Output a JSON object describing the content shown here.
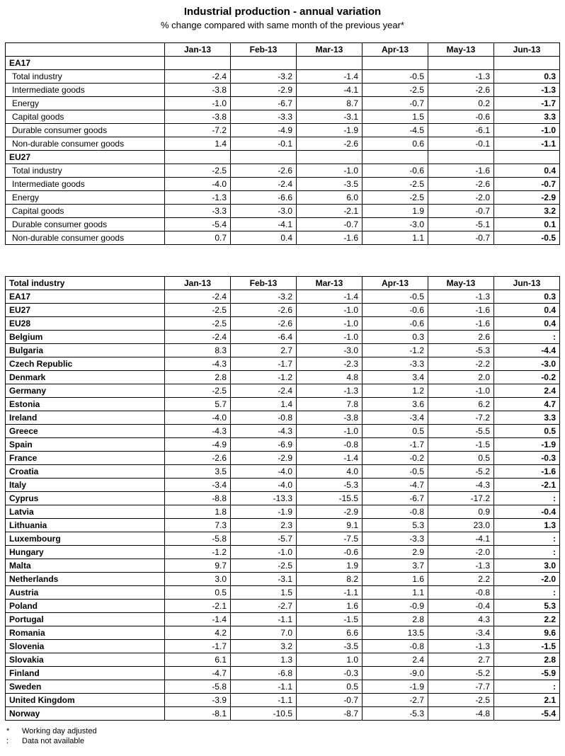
{
  "page": {
    "title": "Industrial production - annual variation",
    "subtitle": "% change compared with same month of the previous year*"
  },
  "tables": {
    "breakdown": {
      "corner_label": "",
      "columns": [
        "Jan-13",
        "Feb-13",
        "Mar-13",
        "Apr-13",
        "May-13",
        "Jun-13"
      ],
      "rows": [
        {
          "label": "EA17",
          "style": "group",
          "values": [
            "",
            "",
            "",
            "",
            "",
            ""
          ]
        },
        {
          "label": "Total industry",
          "style": "item",
          "values": [
            "-2.4",
            "-3.2",
            "-1.4",
            "-0.5",
            "-1.3",
            "0.3"
          ]
        },
        {
          "label": "Intermediate goods",
          "style": "item",
          "values": [
            "-3.8",
            "-2.9",
            "-4.1",
            "-2.5",
            "-2.6",
            "-1.3"
          ]
        },
        {
          "label": "Energy",
          "style": "item",
          "values": [
            "-1.0",
            "-6.7",
            "8.7",
            "-0.7",
            "0.2",
            "-1.7"
          ]
        },
        {
          "label": "Capital goods",
          "style": "item",
          "values": [
            "-3.8",
            "-3.3",
            "-3.1",
            "1.5",
            "-0.6",
            "3.3"
          ]
        },
        {
          "label": "Durable consumer goods",
          "style": "item",
          "values": [
            "-7.2",
            "-4.9",
            "-1.9",
            "-4.5",
            "-6.1",
            "-1.0"
          ]
        },
        {
          "label": "Non-durable consumer goods",
          "style": "item",
          "values": [
            "1.4",
            "-0.1",
            "-2.6",
            "0.6",
            "-0.1",
            "-1.1"
          ]
        },
        {
          "label": "EU27",
          "style": "group",
          "values": [
            "",
            "",
            "",
            "",
            "",
            ""
          ]
        },
        {
          "label": "Total industry",
          "style": "item",
          "values": [
            "-2.5",
            "-2.6",
            "-1.0",
            "-0.6",
            "-1.6",
            "0.4"
          ]
        },
        {
          "label": "Intermediate goods",
          "style": "item",
          "values": [
            "-4.0",
            "-2.4",
            "-3.5",
            "-2.5",
            "-2.6",
            "-0.7"
          ]
        },
        {
          "label": "Energy",
          "style": "item",
          "values": [
            "-1.3",
            "-6.6",
            "6.0",
            "-2.5",
            "-2.0",
            "-2.9"
          ]
        },
        {
          "label": "Capital goods",
          "style": "item",
          "values": [
            "-3.3",
            "-3.0",
            "-2.1",
            "1.9",
            "-0.7",
            "3.2"
          ]
        },
        {
          "label": "Durable consumer goods",
          "style": "item",
          "values": [
            "-5.4",
            "-4.1",
            "-0.7",
            "-3.0",
            "-5.1",
            "0.1"
          ]
        },
        {
          "label": "Non-durable consumer goods",
          "style": "item",
          "values": [
            "0.7",
            "0.4",
            "-1.6",
            "1.1",
            "-0.7",
            "-0.5"
          ]
        }
      ]
    },
    "countries": {
      "corner_label": "Total industry",
      "columns": [
        "Jan-13",
        "Feb-13",
        "Mar-13",
        "Apr-13",
        "May-13",
        "Jun-13"
      ],
      "rows": [
        {
          "label": "EA17",
          "style": "group",
          "values": [
            "-2.4",
            "-3.2",
            "-1.4",
            "-0.5",
            "-1.3",
            "0.3"
          ]
        },
        {
          "label": "EU27",
          "style": "group",
          "values": [
            "-2.5",
            "-2.6",
            "-1.0",
            "-0.6",
            "-1.6",
            "0.4"
          ]
        },
        {
          "label": "EU28",
          "style": "group",
          "values": [
            "-2.5",
            "-2.6",
            "-1.0",
            "-0.6",
            "-1.6",
            "0.4"
          ]
        },
        {
          "label": "Belgium",
          "style": "group",
          "values": [
            "-2.4",
            "-6.4",
            "-1.0",
            "0.3",
            "2.6",
            ":"
          ]
        },
        {
          "label": "Bulgaria",
          "style": "group",
          "values": [
            "8.3",
            "2.7",
            "-3.0",
            "-1.2",
            "-5.3",
            "-4.4"
          ]
        },
        {
          "label": "Czech Republic",
          "style": "group",
          "values": [
            "-4.3",
            "-1.7",
            "-2.3",
            "-3.3",
            "-2.2",
            "-3.0"
          ]
        },
        {
          "label": "Denmark",
          "style": "group",
          "values": [
            "2.8",
            "-1.2",
            "4.8",
            "3.4",
            "2.0",
            "-0.2"
          ]
        },
        {
          "label": "Germany",
          "style": "group",
          "values": [
            "-2.5",
            "-2.4",
            "-1.3",
            "1.2",
            "-1.0",
            "2.4"
          ]
        },
        {
          "label": "Estonia",
          "style": "group",
          "values": [
            "5.7",
            "1.4",
            "7.8",
            "3.6",
            "6.2",
            "4.7"
          ]
        },
        {
          "label": "Ireland",
          "style": "group",
          "values": [
            "-4.0",
            "-0.8",
            "-3.8",
            "-3.4",
            "-7.2",
            "3.3"
          ]
        },
        {
          "label": "Greece",
          "style": "group",
          "values": [
            "-4.3",
            "-4.3",
            "-1.0",
            "0.5",
            "-5.5",
            "0.5"
          ]
        },
        {
          "label": "Spain",
          "style": "group",
          "values": [
            "-4.9",
            "-6.9",
            "-0.8",
            "-1.7",
            "-1.5",
            "-1.9"
          ]
        },
        {
          "label": "France",
          "style": "group",
          "values": [
            "-2.6",
            "-2.9",
            "-1.4",
            "-0.2",
            "0.5",
            "-0.3"
          ]
        },
        {
          "label": "Croatia",
          "style": "group",
          "values": [
            "3.5",
            "-4.0",
            "4.0",
            "-0.5",
            "-5.2",
            "-1.6"
          ]
        },
        {
          "label": "Italy",
          "style": "group",
          "values": [
            "-3.4",
            "-4.0",
            "-5.3",
            "-4.7",
            "-4.3",
            "-2.1"
          ]
        },
        {
          "label": "Cyprus",
          "style": "group",
          "values": [
            "-8.8",
            "-13.3",
            "-15.5",
            "-6.7",
            "-17.2",
            ":"
          ]
        },
        {
          "label": "Latvia",
          "style": "group",
          "values": [
            "1.8",
            "-1.9",
            "-2.9",
            "-0.8",
            "0.9",
            "-0.4"
          ]
        },
        {
          "label": "Lithuania",
          "style": "group",
          "values": [
            "7.3",
            "2.3",
            "9.1",
            "5.3",
            "23.0",
            "1.3"
          ]
        },
        {
          "label": "Luxembourg",
          "style": "group",
          "values": [
            "-5.8",
            "-5.7",
            "-7.5",
            "-3.3",
            "-4.1",
            ":"
          ]
        },
        {
          "label": "Hungary",
          "style": "group",
          "values": [
            "-1.2",
            "-1.0",
            "-0.6",
            "2.9",
            "-2.0",
            ":"
          ]
        },
        {
          "label": "Malta",
          "style": "group",
          "values": [
            "9.7",
            "-2.5",
            "1.9",
            "3.7",
            "-1.3",
            "3.0"
          ]
        },
        {
          "label": "Netherlands",
          "style": "group",
          "values": [
            "3.0",
            "-3.1",
            "8.2",
            "1.6",
            "2.2",
            "-2.0"
          ]
        },
        {
          "label": "Austria",
          "style": "group",
          "values": [
            "0.5",
            "1.5",
            "-1.1",
            "1.1",
            "-0.8",
            ":"
          ]
        },
        {
          "label": "Poland",
          "style": "group",
          "values": [
            "-2.1",
            "-2.7",
            "1.6",
            "-0.9",
            "-0.4",
            "5.3"
          ]
        },
        {
          "label": "Portugal",
          "style": "group",
          "values": [
            "-1.4",
            "-1.1",
            "-1.5",
            "2.8",
            "4.3",
            "2.2"
          ]
        },
        {
          "label": "Romania",
          "style": "group",
          "values": [
            "4.2",
            "7.0",
            "6.6",
            "13.5",
            "-3.4",
            "9.6"
          ]
        },
        {
          "label": "Slovenia",
          "style": "group",
          "values": [
            "-1.7",
            "3.2",
            "-3.5",
            "-0.8",
            "-1.3",
            "-1.5"
          ]
        },
        {
          "label": "Slovakia",
          "style": "group",
          "values": [
            "6.1",
            "1.3",
            "1.0",
            "2.4",
            "2.7",
            "2.8"
          ]
        },
        {
          "label": "Finland",
          "style": "group",
          "values": [
            "-4.7",
            "-6.8",
            "-0.3",
            "-9.0",
            "-5.2",
            "-5.9"
          ]
        },
        {
          "label": "Sweden",
          "style": "group",
          "values": [
            "-5.8",
            "-1.1",
            "0.5",
            "-1.9",
            "-7.7",
            ":"
          ]
        },
        {
          "label": "United Kingdom",
          "style": "group",
          "values": [
            "-3.9",
            "-1.1",
            "-0.7",
            "-2.7",
            "-2.5",
            "2.1"
          ]
        },
        {
          "label": "Norway",
          "style": "group",
          "values": [
            "-8.1",
            "-10.5",
            "-8.7",
            "-5.3",
            "-4.8",
            "-5.4"
          ]
        }
      ]
    }
  },
  "footnotes": [
    {
      "symbol": "*",
      "text": "Working day adjusted"
    },
    {
      "symbol": ":",
      "text": "Data not available"
    }
  ]
}
